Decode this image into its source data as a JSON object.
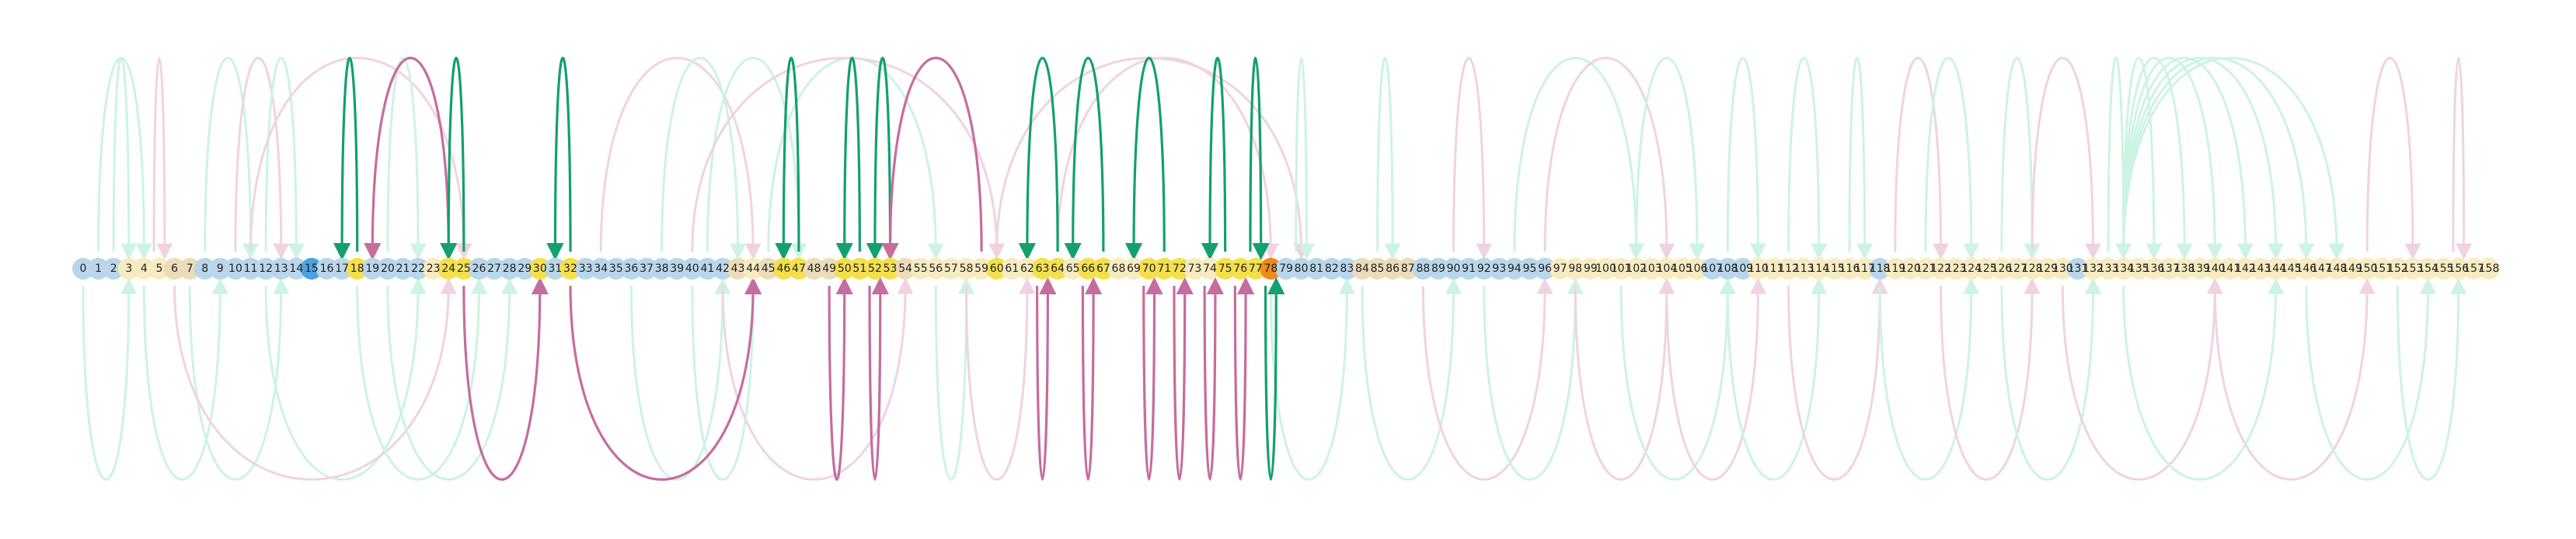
{
  "diagram": {
    "type": "arc-diagram",
    "node_count": 159,
    "node_label_start": 0,
    "node_label_end": 158,
    "colors": {
      "node_blue": "#b9d6ea",
      "node_blue_strong": "#4aa3df",
      "node_cream": "#f6ecc0",
      "node_tan": "#ecdcb9",
      "node_yellow": "#f4e04d",
      "node_orange": "#f08a1c",
      "arc_green_strong": "#13a06d",
      "arc_pink_strong": "#c56d9e",
      "arc_green_faint": "#cdf3e3",
      "arc_pink_faint": "#f0d3e1"
    },
    "node_styles": {
      "strong_blue": [
        15
      ],
      "yellow": [
        18,
        24,
        25,
        30,
        32,
        46,
        47,
        50,
        51,
        52,
        53,
        60,
        63,
        64,
        66,
        67,
        70,
        71,
        72,
        75,
        76,
        77
      ],
      "orange": [
        78
      ],
      "cream": [
        3,
        4,
        5,
        23,
        44,
        55,
        56,
        57,
        58,
        59,
        61,
        62,
        65,
        68,
        69,
        73,
        74,
        97,
        98,
        99,
        100,
        101,
        102,
        103,
        104,
        105,
        106,
        110,
        111,
        112,
        113,
        114,
        115,
        116,
        117,
        119,
        120,
        121,
        122,
        123,
        124,
        125,
        126,
        127,
        128,
        129,
        130,
        132,
        133,
        134,
        135,
        136,
        137,
        138,
        139,
        140,
        141,
        142,
        143,
        144,
        145,
        146,
        147,
        148,
        149,
        150,
        151,
        152,
        153,
        154,
        155,
        156,
        157,
        158
      ],
      "tan": [
        6,
        7,
        43,
        45,
        48,
        49,
        54,
        84,
        85,
        86,
        87
      ]
    },
    "strong_arcs": [
      {
        "from": 18,
        "to": 17,
        "side": "top",
        "color": "green"
      },
      {
        "from": 24,
        "to": 19,
        "side": "top",
        "color": "pink"
      },
      {
        "from": 25,
        "to": 24,
        "side": "top",
        "color": "green"
      },
      {
        "from": 32,
        "to": 31,
        "side": "top",
        "color": "green"
      },
      {
        "from": 47,
        "to": 46,
        "side": "top",
        "color": "green"
      },
      {
        "from": 51,
        "to": 50,
        "side": "top",
        "color": "green"
      },
      {
        "from": 53,
        "to": 52,
        "side": "top",
        "color": "green"
      },
      {
        "from": 59,
        "to": 53,
        "side": "top",
        "color": "pink"
      },
      {
        "from": 64,
        "to": 62,
        "side": "top",
        "color": "green"
      },
      {
        "from": 67,
        "to": 65,
        "side": "top",
        "color": "green"
      },
      {
        "from": 71,
        "to": 69,
        "side": "top",
        "color": "green"
      },
      {
        "from": 75,
        "to": 74,
        "side": "top",
        "color": "green"
      },
      {
        "from": 77,
        "to": 77,
        "side": "top",
        "color": "green"
      },
      {
        "from": 25,
        "to": 30,
        "side": "bottom",
        "color": "pink"
      },
      {
        "from": 32,
        "to": 44,
        "side": "bottom",
        "color": "pink"
      },
      {
        "from": 49,
        "to": 50,
        "side": "bottom",
        "color": "pink"
      },
      {
        "from": 52,
        "to": 52,
        "side": "bottom",
        "color": "pink"
      },
      {
        "from": 63,
        "to": 63,
        "side": "bottom",
        "color": "pink"
      },
      {
        "from": 66,
        "to": 66,
        "side": "bottom",
        "color": "pink"
      },
      {
        "from": 70,
        "to": 70,
        "side": "bottom",
        "color": "pink"
      },
      {
        "from": 72,
        "to": 72,
        "side": "bottom",
        "color": "pink"
      },
      {
        "from": 74,
        "to": 74,
        "side": "bottom",
        "color": "pink"
      },
      {
        "from": 76,
        "to": 76,
        "side": "bottom",
        "color": "pink"
      },
      {
        "from": 78,
        "to": 78,
        "side": "bottom",
        "color": "green"
      }
    ],
    "faint_arcs": [
      {
        "from": 2,
        "to": 3,
        "side": "top",
        "color": "green"
      },
      {
        "from": 1,
        "to": 4,
        "side": "top",
        "color": "green"
      },
      {
        "from": 5,
        "to": 5,
        "side": "top",
        "color": "pink"
      },
      {
        "from": 8,
        "to": 11,
        "side": "top",
        "color": "green"
      },
      {
        "from": 10,
        "to": 13,
        "side": "top",
        "color": "pink"
      },
      {
        "from": 12,
        "to": 14,
        "side": "top",
        "color": "green"
      },
      {
        "from": 11,
        "to": 25,
        "side": "top",
        "color": "pink"
      },
      {
        "from": 20,
        "to": 22,
        "side": "top",
        "color": "green"
      },
      {
        "from": 34,
        "to": 44,
        "side": "top",
        "color": "pink"
      },
      {
        "from": 38,
        "to": 43,
        "side": "top",
        "color": "green"
      },
      {
        "from": 41,
        "to": 47,
        "side": "top",
        "color": "green"
      },
      {
        "from": 45,
        "to": 56,
        "side": "top",
        "color": "green"
      },
      {
        "from": 40,
        "to": 60,
        "side": "top",
        "color": "pink"
      },
      {
        "from": 60,
        "to": 80,
        "side": "top",
        "color": "pink"
      },
      {
        "from": 64,
        "to": 78,
        "side": "top",
        "color": "pink"
      },
      {
        "from": 80,
        "to": 80,
        "side": "top",
        "color": "green"
      },
      {
        "from": 85,
        "to": 86,
        "side": "top",
        "color": "green"
      },
      {
        "from": 90,
        "to": 92,
        "side": "top",
        "color": "pink"
      },
      {
        "from": 94,
        "to": 102,
        "side": "top",
        "color": "green"
      },
      {
        "from": 96,
        "to": 104,
        "side": "top",
        "color": "pink"
      },
      {
        "from": 102,
        "to": 106,
        "side": "top",
        "color": "green"
      },
      {
        "from": 108,
        "to": 110,
        "side": "top",
        "color": "green"
      },
      {
        "from": 112,
        "to": 114,
        "side": "top",
        "color": "green"
      },
      {
        "from": 116,
        "to": 117,
        "side": "top",
        "color": "green"
      },
      {
        "from": 119,
        "to": 122,
        "side": "top",
        "color": "pink"
      },
      {
        "from": 121,
        "to": 124,
        "side": "top",
        "color": "green"
      },
      {
        "from": 126,
        "to": 128,
        "side": "top",
        "color": "green"
      },
      {
        "from": 128,
        "to": 132,
        "side": "top",
        "color": "pink"
      },
      {
        "from": 133,
        "to": 134,
        "side": "top",
        "color": "green"
      },
      {
        "from": 134,
        "to": 136,
        "side": "top",
        "color": "green"
      },
      {
        "from": 134,
        "to": 138,
        "side": "top",
        "color": "green"
      },
      {
        "from": 134,
        "to": 140,
        "side": "top",
        "color": "green"
      },
      {
        "from": 134,
        "to": 142,
        "side": "top",
        "color": "green"
      },
      {
        "from": 134,
        "to": 144,
        "side": "top",
        "color": "green"
      },
      {
        "from": 134,
        "to": 146,
        "side": "top",
        "color": "green"
      },
      {
        "from": 134,
        "to": 148,
        "side": "top",
        "color": "green"
      },
      {
        "from": 150,
        "to": 153,
        "side": "top",
        "color": "pink"
      },
      {
        "from": 156,
        "to": 156,
        "side": "top",
        "color": "pink"
      },
      {
        "from": 0,
        "to": 3,
        "side": "bottom",
        "color": "green"
      },
      {
        "from": 4,
        "to": 9,
        "side": "bottom",
        "color": "green"
      },
      {
        "from": 7,
        "to": 13,
        "side": "bottom",
        "color": "green"
      },
      {
        "from": 12,
        "to": 22,
        "side": "bottom",
        "color": "green"
      },
      {
        "from": 6,
        "to": 24,
        "side": "bottom",
        "color": "pink"
      },
      {
        "from": 18,
        "to": 26,
        "side": "bottom",
        "color": "green"
      },
      {
        "from": 20,
        "to": 28,
        "side": "bottom",
        "color": "green"
      },
      {
        "from": 36,
        "to": 42,
        "side": "bottom",
        "color": "green"
      },
      {
        "from": 40,
        "to": 44,
        "side": "bottom",
        "color": "green"
      },
      {
        "from": 42,
        "to": 54,
        "side": "bottom",
        "color": "pink"
      },
      {
        "from": 56,
        "to": 58,
        "side": "bottom",
        "color": "green"
      },
      {
        "from": 58,
        "to": 62,
        "side": "bottom",
        "color": "pink"
      },
      {
        "from": 78,
        "to": 83,
        "side": "bottom",
        "color": "green"
      },
      {
        "from": 84,
        "to": 90,
        "side": "bottom",
        "color": "green"
      },
      {
        "from": 88,
        "to": 96,
        "side": "bottom",
        "color": "pink"
      },
      {
        "from": 92,
        "to": 98,
        "side": "bottom",
        "color": "green"
      },
      {
        "from": 98,
        "to": 104,
        "side": "bottom",
        "color": "pink"
      },
      {
        "from": 101,
        "to": 108,
        "side": "bottom",
        "color": "green"
      },
      {
        "from": 104,
        "to": 110,
        "side": "bottom",
        "color": "pink"
      },
      {
        "from": 108,
        "to": 114,
        "side": "bottom",
        "color": "green"
      },
      {
        "from": 112,
        "to": 118,
        "side": "bottom",
        "color": "pink"
      },
      {
        "from": 118,
        "to": 124,
        "side": "bottom",
        "color": "green"
      },
      {
        "from": 122,
        "to": 128,
        "side": "bottom",
        "color": "pink"
      },
      {
        "from": 126,
        "to": 132,
        "side": "bottom",
        "color": "green"
      },
      {
        "from": 130,
        "to": 140,
        "side": "bottom",
        "color": "pink"
      },
      {
        "from": 134,
        "to": 144,
        "side": "bottom",
        "color": "green"
      },
      {
        "from": 140,
        "to": 150,
        "side": "bottom",
        "color": "pink"
      },
      {
        "from": 146,
        "to": 154,
        "side": "bottom",
        "color": "green"
      },
      {
        "from": 152,
        "to": 156,
        "side": "bottom",
        "color": "green"
      }
    ]
  }
}
